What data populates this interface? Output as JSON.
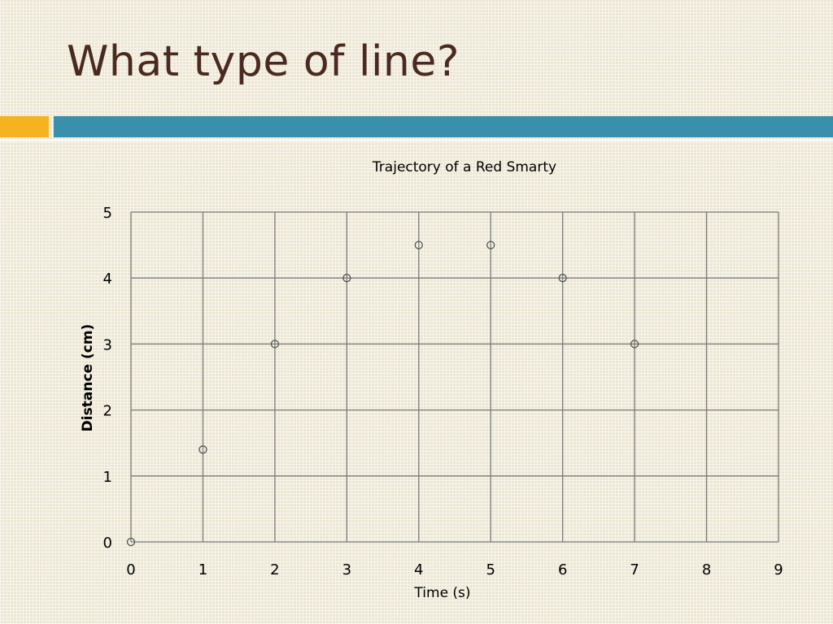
{
  "slide": {
    "title": "What type of line?",
    "accent_colors": {
      "orange": "#f5b321",
      "blue": "#3a8fac",
      "title_text": "#4a2a20"
    }
  },
  "chart_data": {
    "type": "scatter",
    "title": "Trajectory of a Red Smarty",
    "xlabel": "Time (s)",
    "ylabel": "Distance (cm)",
    "xlim": [
      0,
      9
    ],
    "ylim": [
      0,
      5
    ],
    "xticks": [
      0,
      1,
      2,
      3,
      4,
      5,
      6,
      7,
      8,
      9
    ],
    "yticks": [
      0,
      1,
      2,
      3,
      4,
      5
    ],
    "grid": true,
    "legend": "none",
    "marker": "open-circle",
    "points": [
      {
        "x": 0,
        "y": 0
      },
      {
        "x": 1,
        "y": 1.4
      },
      {
        "x": 2,
        "y": 3
      },
      {
        "x": 3,
        "y": 4
      },
      {
        "x": 4,
        "y": 4.5
      },
      {
        "x": 5,
        "y": 4.5
      },
      {
        "x": 6,
        "y": 4
      },
      {
        "x": 7,
        "y": 3
      }
    ]
  }
}
